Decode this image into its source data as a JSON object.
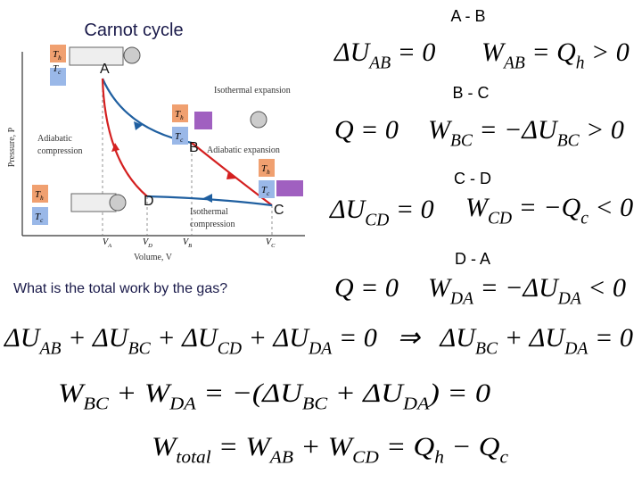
{
  "title": "Carnot cycle",
  "diagram": {
    "points": [
      "A",
      "B",
      "C",
      "D"
    ],
    "isothermal_expansion": "Isothermal expansion",
    "adiabatic_compression": [
      "Adiabatic",
      "compression"
    ],
    "adiabatic_expansion": "Adiabatic expansion",
    "isothermal_compression": [
      "Isothermal",
      "compression"
    ],
    "y_axis": "Pressure, P",
    "x_axis": "Volume, V",
    "volumes": [
      [
        {
          "m": "V",
          "s": "A"
        }
      ],
      [
        {
          "m": "V",
          "s": "D"
        }
      ],
      [
        {
          "m": "V",
          "s": "B"
        }
      ],
      [
        {
          "m": "V",
          "s": "C"
        }
      ]
    ],
    "hot": [
      {
        "m": "T",
        "s": "h"
      }
    ],
    "cold": [
      {
        "m": "T",
        "s": "c"
      }
    ]
  },
  "stages": [
    {
      "name": "A - B",
      "equations": [
        [
          {
            "m": "ΔU",
            "s": "AB"
          },
          {
            "m": " = 0"
          }
        ],
        [
          {
            "m": "W",
            "s": "AB"
          },
          {
            "m": " = Q",
            "s": "h"
          },
          {
            "m": " > 0"
          }
        ]
      ]
    },
    {
      "name": "B - C",
      "equations": [
        [
          {
            "m": "Q = 0"
          }
        ],
        [
          {
            "m": "W",
            "s": "BC"
          },
          {
            "m": " = −ΔU",
            "s": "BC"
          },
          {
            "m": " > 0"
          }
        ]
      ]
    },
    {
      "name": "C - D",
      "equations": [
        [
          {
            "m": "ΔU",
            "s": "CD"
          },
          {
            "m": " = 0"
          }
        ],
        [
          {
            "m": "W",
            "s": "CD"
          },
          {
            "m": " = −Q",
            "s": "c"
          },
          {
            "m": " < 0"
          }
        ]
      ]
    },
    {
      "name": "D - A",
      "equations": [
        [
          {
            "m": "Q = 0"
          }
        ],
        [
          {
            "m": "W",
            "s": "DA"
          },
          {
            "m": " = −ΔU",
            "s": "DA"
          },
          {
            "m": " < 0"
          }
        ]
      ]
    }
  ],
  "question": "What is the total work by the gas?",
  "summary": [
    [
      {
        "m": "ΔU",
        "s": "AB"
      },
      {
        "m": " + ΔU",
        "s": "BC"
      },
      {
        "m": " + ΔU",
        "s": "CD"
      },
      {
        "m": " + ΔU",
        "s": "DA"
      },
      {
        "m": " = 0   ⇒   ΔU",
        "s": "BC"
      },
      {
        "m": " + ΔU",
        "s": "DA"
      },
      {
        "m": " = 0"
      }
    ],
    [
      {
        "m": "W",
        "s": "BC"
      },
      {
        "m": " + W",
        "s": "DA"
      },
      {
        "m": " = −(ΔU",
        "s": "BC"
      },
      {
        "m": " + ΔU",
        "s": "DA"
      },
      {
        "m": ") = 0"
      }
    ],
    [
      {
        "m": "W",
        "s": "total"
      },
      {
        "m": " = W",
        "s": "AB"
      },
      {
        "m": " + W",
        "s": "CD"
      },
      {
        "m": " = Q",
        "s": "h"
      },
      {
        "m": " − Q",
        "s": "c"
      }
    ]
  ]
}
